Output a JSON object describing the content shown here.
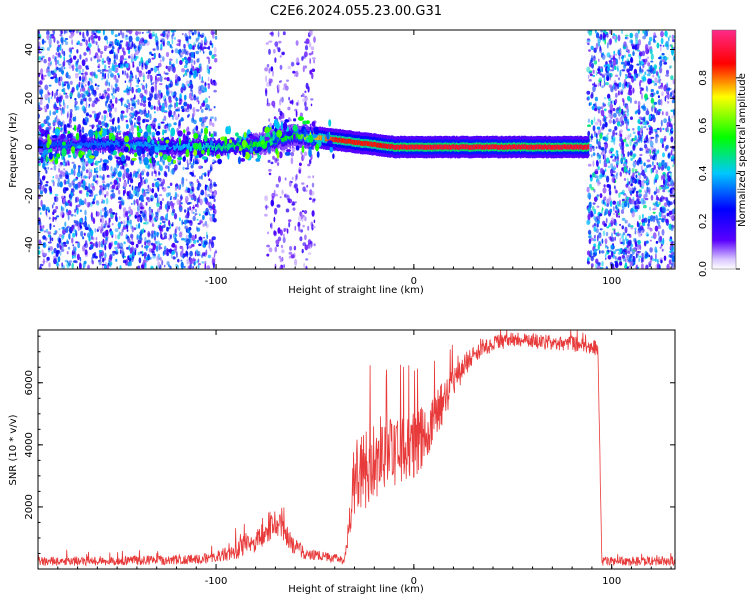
{
  "figure": {
    "title": "C2E6.2024.055.23.00.G31"
  },
  "chart_data": [
    {
      "type": "heatmap",
      "xlabel": "Height of straight line (km)",
      "ylabel": "Frequency (Hz)",
      "xlim": [
        -190,
        132
      ],
      "ylim": [
        -50,
        48
      ],
      "x_ticks": [
        -100,
        0,
        100
      ],
      "x_tick_labels": [
        "-100",
        "0",
        "100"
      ],
      "y_ticks": [
        -40,
        -20,
        0,
        20,
        40
      ],
      "y_tick_labels": [
        "-40",
        "-20",
        "0",
        "20",
        "40"
      ],
      "colorbar": {
        "label": "Normalized spectral amplitude",
        "range": [
          0,
          1
        ],
        "ticks": [
          0.0,
          0.2,
          0.4,
          0.6,
          0.8
        ],
        "tick_labels": [
          "0.0",
          "0.2",
          "0.4",
          "0.6",
          "0.8"
        ],
        "colormap": [
          "#ffffff",
          "#5a00ff",
          "#0000ff",
          "#00c8ff",
          "#00ff00",
          "#ffff00",
          "#ff0000",
          "#ff2a8a"
        ]
      },
      "noise_regions": [
        {
          "x_range": [
            -190,
            -100
          ],
          "density": 0.9,
          "amplitude": 0.35
        },
        {
          "x_range": [
            -75,
            -50
          ],
          "density": 0.35,
          "amplitude": 0.15
        },
        {
          "x_range": [
            88,
            132
          ],
          "density": 0.95,
          "amplitude": 0.4
        }
      ],
      "ridge": [
        {
          "x": -190,
          "freq": 1,
          "amplitude": 0.3
        },
        {
          "x": -150,
          "freq": 1,
          "amplitude": 0.35
        },
        {
          "x": -110,
          "freq": 0,
          "amplitude": 0.4
        },
        {
          "x": -95,
          "freq": 0,
          "amplitude": 0.5
        },
        {
          "x": -80,
          "freq": 1,
          "amplitude": 0.55
        },
        {
          "x": -70,
          "freq": 3,
          "amplitude": 0.55
        },
        {
          "x": -60,
          "freq": 5,
          "amplitude": 0.55
        },
        {
          "x": -50,
          "freq": 4,
          "amplitude": 0.75
        },
        {
          "x": -40,
          "freq": 3,
          "amplitude": 0.85
        },
        {
          "x": -30,
          "freq": 2,
          "amplitude": 0.85
        },
        {
          "x": -20,
          "freq": 1,
          "amplitude": 0.85
        },
        {
          "x": -10,
          "freq": 0,
          "amplitude": 0.9
        },
        {
          "x": 0,
          "freq": 0,
          "amplitude": 0.9
        },
        {
          "x": 20,
          "freq": 0,
          "amplitude": 0.9
        },
        {
          "x": 50,
          "freq": 0,
          "amplitude": 0.9
        },
        {
          "x": 88,
          "freq": 0,
          "amplitude": 0.9
        }
      ]
    },
    {
      "type": "line",
      "xlabel": "Height of straight line (km)",
      "ylabel": "SNR (10 * v/v)",
      "xlim": [
        -190,
        132
      ],
      "ylim": [
        0,
        7700
      ],
      "x_ticks": [
        -100,
        0,
        100
      ],
      "x_tick_labels": [
        "-100",
        "0",
        "100"
      ],
      "y_ticks": [
        2000,
        4000,
        6000
      ],
      "y_tick_labels": [
        "2000",
        "4000",
        "6000"
      ],
      "series": [
        {
          "color": "#e83a3a",
          "x": [
            -190,
            -170,
            -150,
            -130,
            -110,
            -100,
            -90,
            -80,
            -75,
            -70,
            -65,
            -60,
            -55,
            -50,
            -45,
            -40,
            -35,
            -32,
            -30,
            -25,
            -20,
            -15,
            -10,
            -5,
            0,
            5,
            10,
            15,
            20,
            25,
            30,
            40,
            50,
            60,
            70,
            80,
            90,
            93,
            95,
            110,
            132
          ],
          "y": [
            250,
            260,
            270,
            280,
            320,
            380,
            600,
            900,
            1300,
            1500,
            1100,
            700,
            500,
            450,
            400,
            350,
            300,
            1700,
            3000,
            3200,
            3500,
            3800,
            3600,
            3900,
            4000,
            4300,
            4800,
            5400,
            6000,
            6500,
            6900,
            7250,
            7400,
            7350,
            7300,
            7250,
            7150,
            7100,
            250,
            250,
            250
          ],
          "noise": [
            150,
            150,
            150,
            150,
            150,
            180,
            300,
            400,
            500,
            500,
            400,
            300,
            200,
            180,
            150,
            150,
            150,
            600,
            1300,
            1300,
            1300,
            1200,
            1200,
            1100,
            1100,
            1000,
            800,
            700,
            500,
            400,
            300,
            250,
            250,
            250,
            250,
            250,
            250,
            250,
            150,
            150,
            150
          ]
        }
      ]
    }
  ]
}
